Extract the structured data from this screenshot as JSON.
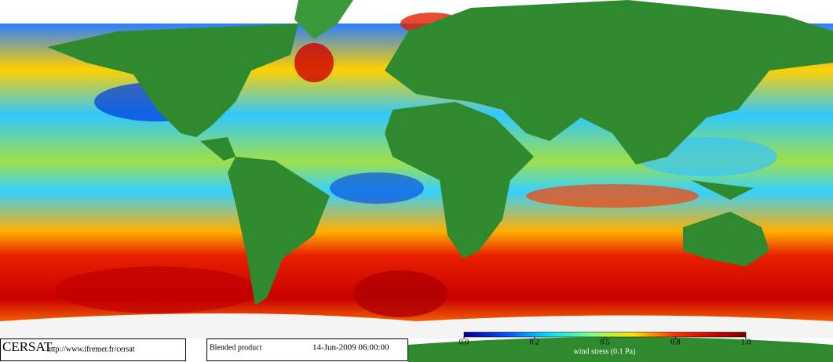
{
  "logo": "CERSAT",
  "url": "http://www.ifremer.fr/cersat",
  "product": "Blended product",
  "date": "14-Jun-2009 06:00:00",
  "colorbar": {
    "ticks": [
      {
        "value": 0,
        "label": "0.0"
      },
      0.2,
      0.5,
      0.8,
      {
        "value": 1,
        "label": "1.0"
      }
    ],
    "label": "wind stress (0.1 Pa)"
  }
}
